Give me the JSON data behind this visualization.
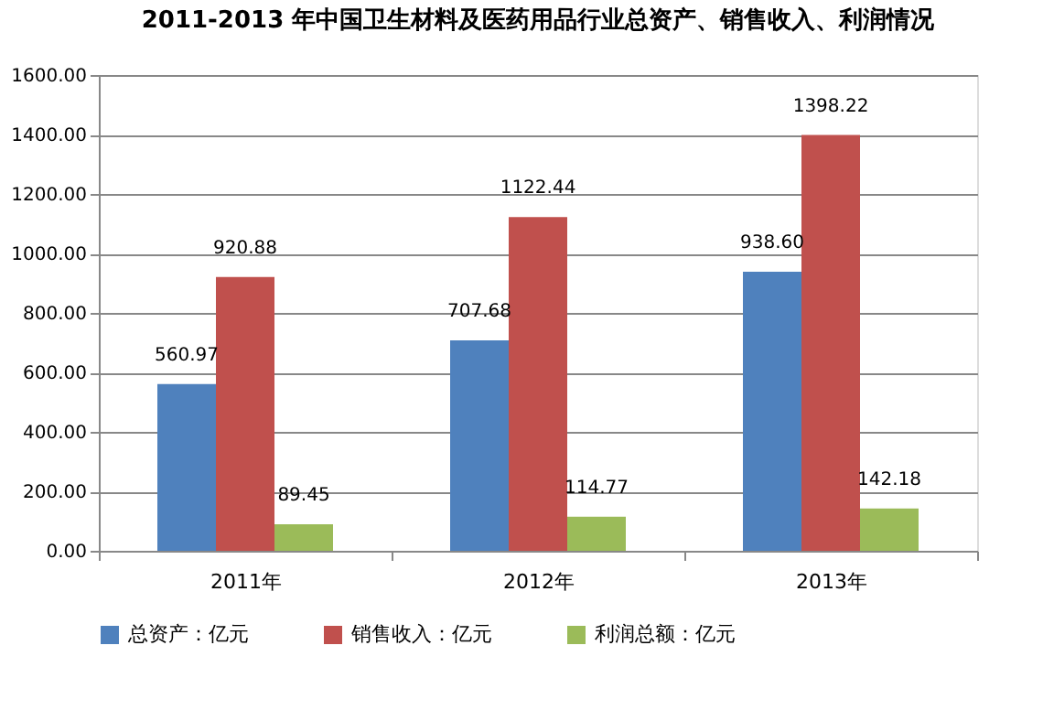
{
  "chart_data": {
    "type": "bar",
    "title": "2011-2013 年中国卫生材料及医药用品行业总资产、销售收入、利润情况",
    "categories": [
      "2011年",
      "2012年",
      "2013年"
    ],
    "series": [
      {
        "name": "总资产：亿元",
        "color": "#4f81bd",
        "values": [
          560.97,
          707.68,
          938.6
        ],
        "value_labels": [
          "560.97",
          "707.68",
          "938.60"
        ]
      },
      {
        "name": "销售收入：亿元",
        "color": "#c0504d",
        "values": [
          920.88,
          1122.44,
          1398.22
        ],
        "value_labels": [
          "920.88",
          "1122.44",
          "1398.22"
        ]
      },
      {
        "name": "利润总额：亿元",
        "color": "#9bbb59",
        "values": [
          89.45,
          114.77,
          142.18
        ],
        "value_labels": [
          "89.45",
          "114.77",
          "142.18"
        ]
      }
    ],
    "ylim": [
      0,
      1600
    ],
    "yticks": [
      {
        "value": 0,
        "label": "0.00"
      },
      {
        "value": 200,
        "label": "200.00"
      },
      {
        "value": 400,
        "label": "400.00"
      },
      {
        "value": 600,
        "label": "600.00"
      },
      {
        "value": 800,
        "label": "800.00"
      },
      {
        "value": 1000,
        "label": "1000.00"
      },
      {
        "value": 1200,
        "label": "1200.00"
      },
      {
        "value": 1400,
        "label": "1400.00"
      },
      {
        "value": 1600,
        "label": "1600.00"
      }
    ],
    "grid": "y",
    "legend": "bottom"
  }
}
